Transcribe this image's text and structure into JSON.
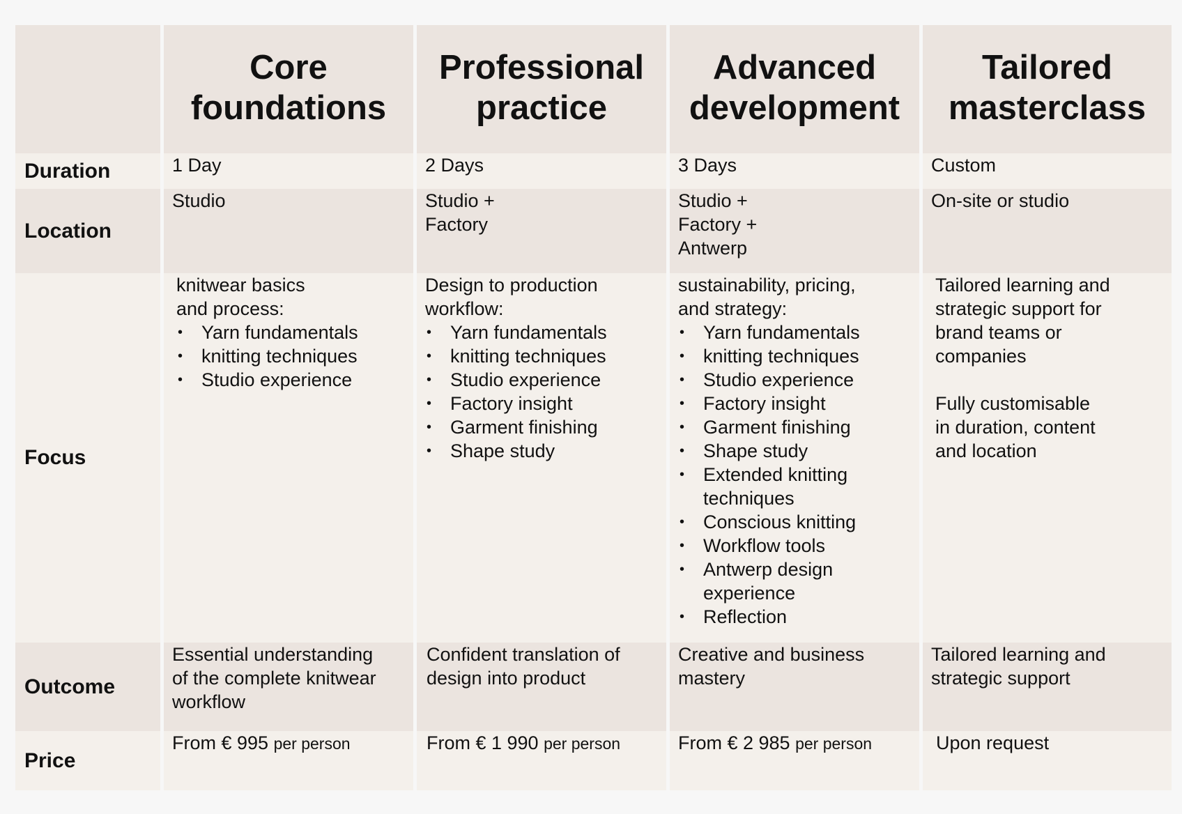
{
  "headers": {
    "corner": "",
    "core": [
      "Core",
      "foundations"
    ],
    "professional": [
      "Professional",
      "practice"
    ],
    "advanced": [
      "Advanced",
      "development"
    ],
    "tailored": [
      "Tailored",
      "masterclass"
    ]
  },
  "labels": {
    "duration": "Duration",
    "location": "Location",
    "focus": "Focus",
    "outcome": "Outcome",
    "price": "Price"
  },
  "duration": {
    "core": "1 Day",
    "professional": "2 Days",
    "advanced": "3 Days",
    "tailored": "Custom"
  },
  "location": {
    "core": [
      "Studio"
    ],
    "professional": [
      "Studio +",
      "Factory"
    ],
    "advanced": [
      "Studio +",
      "Factory +",
      "Antwerp"
    ],
    "tailored": [
      "On-site or studio"
    ]
  },
  "focus": {
    "core": {
      "intro": [
        "knitwear basics",
        "and process:"
      ],
      "items": [
        "Yarn fundamentals",
        "knitting techniques",
        "Studio experience"
      ]
    },
    "professional": {
      "intro": [
        "Design to production",
        "workflow:"
      ],
      "items": [
        "Yarn fundamentals",
        "knitting techniques",
        "Studio experience",
        "Factory insight",
        "Garment finishing",
        "Shape study"
      ]
    },
    "advanced": {
      "intro": [
        "sustainability, pricing,",
        "and strategy:"
      ],
      "items": [
        "Yarn fundamentals",
        "knitting techniques",
        "Studio experience",
        "Factory insight",
        "Garment finishing",
        "Shape study",
        [
          "Extended knitting",
          "techniques"
        ],
        "Conscious knitting",
        "Workflow tools",
        [
          "Antwerp design",
          "experience"
        ],
        "Reflection"
      ]
    },
    "tailored": {
      "para1": [
        "Tailored learning and",
        "strategic support for",
        "brand teams or",
        "companies"
      ],
      "para2": [
        "Fully customisable",
        "in duration, content",
        "and location"
      ]
    }
  },
  "outcome": {
    "core": [
      "Essential understanding",
      "of the complete knitwear",
      "workflow"
    ],
    "professional": [
      "Confident translation of",
      "design into product"
    ],
    "advanced": [
      "Creative and business",
      "mastery"
    ],
    "tailored": [
      "Tailored learning and",
      "strategic support"
    ]
  },
  "price": {
    "core": {
      "amount": "From € 995",
      "unit": "per person"
    },
    "professional": {
      "amount": "From € 1 990",
      "unit": "per person"
    },
    "advanced": {
      "amount": "From € 2 985",
      "unit": "per person"
    },
    "tailored": "Upon request"
  },
  "colors": {
    "header_bg": "#ebe4df",
    "row_dark": "#ebe4df",
    "row_light": "#f4f0eb",
    "page_bg": "#f7f7f7"
  }
}
